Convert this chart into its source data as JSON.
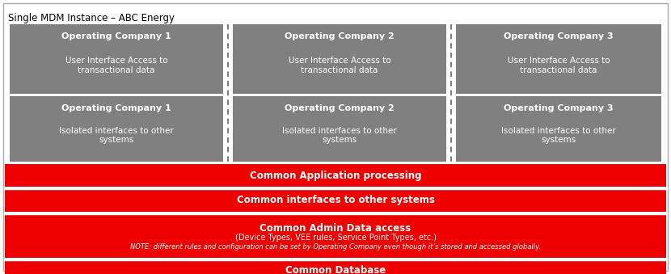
{
  "title": "Single MDM Instance – ABC Energy",
  "bg_color": "#ffffff",
  "border_color": "#aaaaaa",
  "gray_box_color": "#808080",
  "red_bar_color": "#ee0000",
  "white": "#ffffff",
  "dashed_line_color": "#666666",
  "companies": [
    "Operating Company 1",
    "Operating Company 2",
    "Operating Company 3"
  ],
  "row1_sub": "User Interface Access to\ntransactional data",
  "row2_sub": "Isolated interfaces to other\nsystems",
  "bar_texts": [
    {
      "main": "Common Application processing",
      "sub": null,
      "note": null
    },
    {
      "main": "Common interfaces to other systems",
      "sub": null,
      "note": null
    },
    {
      "main": "Common Admin Data access",
      "sub": "(Device Types, VEE rules, Service Point Types, etc.)",
      "note": "NOTE: different rules and configuration can be set by Operating Company even though it’s stored and accessed globally."
    },
    {
      "main": "Common Database",
      "sub": null,
      "note": null
    }
  ]
}
